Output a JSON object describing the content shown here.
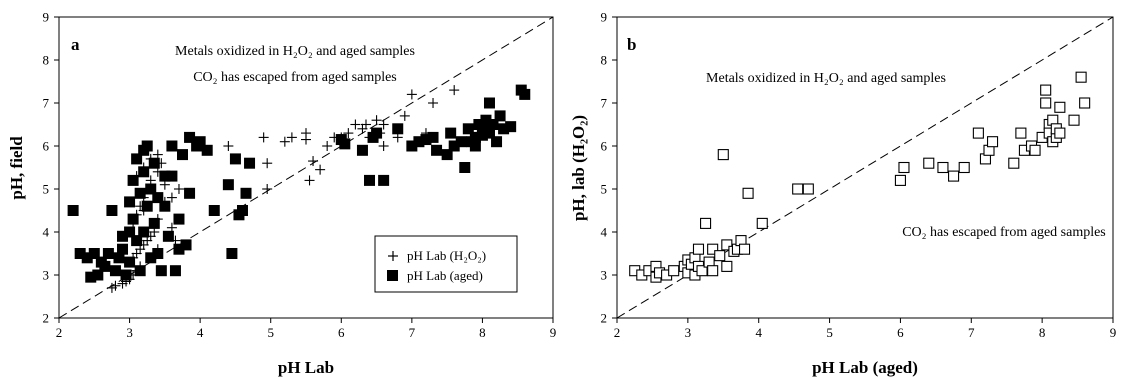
{
  "chart_data": [
    {
      "panel": "a",
      "type": "scatter",
      "xlabel": "pH Lab",
      "ylabel": "pH, field",
      "xlim": [
        2,
        9
      ],
      "ylim": [
        2,
        9
      ],
      "xticks": [
        "2",
        "3",
        "4",
        "5",
        "6",
        "7",
        "8",
        "9"
      ],
      "yticks": [
        "2",
        "3",
        "4",
        "5",
        "6",
        "7",
        "8",
        "9"
      ],
      "grid": false,
      "legend_position": "bottom-right",
      "reference_line": {
        "style": "dashed",
        "x": [
          2,
          9
        ],
        "y": [
          2,
          9
        ]
      },
      "annotations": [
        {
          "text": "Metals oxidized in H₂O₂ and aged samples",
          "x": 5.45,
          "y": 8.45
        },
        {
          "text": "CO₂ has escaped from aged samples",
          "x": 5.45,
          "y": 7.65
        }
      ],
      "series": [
        {
          "name": "pH Lab (H₂O₂)",
          "marker": "plus",
          "points": [
            [
              2.75,
              2.7
            ],
            [
              2.8,
              2.75
            ],
            [
              2.9,
              2.8
            ],
            [
              3.0,
              2.9
            ],
            [
              3.05,
              3.0
            ],
            [
              3.1,
              3.1
            ],
            [
              3.15,
              3.2
            ],
            [
              2.95,
              2.85
            ],
            [
              3.0,
              3.3
            ],
            [
              3.05,
              3.4
            ],
            [
              3.1,
              3.5
            ],
            [
              3.15,
              3.6
            ],
            [
              3.2,
              3.7
            ],
            [
              3.25,
              3.8
            ],
            [
              3.3,
              3.9
            ],
            [
              3.35,
              4.0
            ],
            [
              3.05,
              4.2
            ],
            [
              3.1,
              4.4
            ],
            [
              3.15,
              4.6
            ],
            [
              3.2,
              4.8
            ],
            [
              3.25,
              5.0
            ],
            [
              3.3,
              5.2
            ],
            [
              3.4,
              5.4
            ],
            [
              3.45,
              5.6
            ],
            [
              3.1,
              5.3
            ],
            [
              3.2,
              5.5
            ],
            [
              3.3,
              5.7
            ],
            [
              3.4,
              5.8
            ],
            [
              3.5,
              5.1
            ],
            [
              3.6,
              4.8
            ],
            [
              3.7,
              5.0
            ],
            [
              3.2,
              4.5
            ],
            [
              3.4,
              4.3
            ],
            [
              3.5,
              4.7
            ],
            [
              3.3,
              3.4
            ],
            [
              3.4,
              3.6
            ],
            [
              3.6,
              4.1
            ],
            [
              3.65,
              3.8
            ],
            [
              4.4,
              6.0
            ],
            [
              4.9,
              6.2
            ],
            [
              4.95,
              5.6
            ],
            [
              4.95,
              5.0
            ],
            [
              5.2,
              6.1
            ],
            [
              5.3,
              6.2
            ],
            [
              5.5,
              6.3
            ],
            [
              5.5,
              6.15
            ],
            [
              5.55,
              5.2
            ],
            [
              5.6,
              5.65
            ],
            [
              5.7,
              5.45
            ],
            [
              5.8,
              6.0
            ],
            [
              5.9,
              6.2
            ],
            [
              6.0,
              6.2
            ],
            [
              6.0,
              6.1
            ],
            [
              6.1,
              6.3
            ],
            [
              6.2,
              6.5
            ],
            [
              6.3,
              6.4
            ],
            [
              6.35,
              6.5
            ],
            [
              6.4,
              6.2
            ],
            [
              6.5,
              6.6
            ],
            [
              6.55,
              6.3
            ],
            [
              6.6,
              6.5
            ],
            [
              6.6,
              6.0
            ],
            [
              6.8,
              6.2
            ],
            [
              6.9,
              6.7
            ],
            [
              7.0,
              7.2
            ],
            [
              7.2,
              6.3
            ],
            [
              7.3,
              7.0
            ],
            [
              7.6,
              7.3
            ]
          ]
        },
        {
          "name": "pH Lab (aged)",
          "marker": "filled-square",
          "points": [
            [
              2.2,
              4.5
            ],
            [
              2.3,
              3.5
            ],
            [
              2.4,
              3.4
            ],
            [
              2.45,
              2.95
            ],
            [
              2.5,
              3.5
            ],
            [
              2.55,
              3.0
            ],
            [
              2.6,
              3.3
            ],
            [
              2.65,
              3.2
            ],
            [
              2.7,
              3.5
            ],
            [
              2.75,
              4.5
            ],
            [
              2.8,
              3.1
            ],
            [
              2.85,
              3.4
            ],
            [
              2.9,
              3.9
            ],
            [
              2.95,
              3.0
            ],
            [
              2.9,
              3.6
            ],
            [
              3.0,
              4.7
            ],
            [
              3.0,
              3.3
            ],
            [
              3.0,
              4.0
            ],
            [
              3.05,
              4.3
            ],
            [
              3.05,
              5.2
            ],
            [
              3.1,
              3.8
            ],
            [
              3.1,
              5.7
            ],
            [
              3.15,
              4.9
            ],
            [
              3.15,
              3.1
            ],
            [
              3.2,
              4.0
            ],
            [
              3.2,
              5.4
            ],
            [
              3.2,
              5.9
            ],
            [
              3.25,
              4.6
            ],
            [
              3.25,
              6.0
            ],
            [
              3.3,
              3.4
            ],
            [
              3.3,
              5.0
            ],
            [
              3.35,
              4.2
            ],
            [
              3.35,
              5.6
            ],
            [
              3.4,
              3.5
            ],
            [
              3.4,
              4.8
            ],
            [
              3.45,
              3.1
            ],
            [
              3.5,
              4.6
            ],
            [
              3.5,
              5.3
            ],
            [
              3.55,
              3.9
            ],
            [
              3.6,
              6.0
            ],
            [
              3.6,
              5.3
            ],
            [
              3.65,
              3.1
            ],
            [
              3.7,
              4.3
            ],
            [
              3.7,
              3.6
            ],
            [
              3.75,
              5.8
            ],
            [
              3.8,
              3.7
            ],
            [
              3.85,
              6.2
            ],
            [
              3.85,
              4.9
            ],
            [
              3.95,
              6.0
            ],
            [
              4.1,
              5.9
            ],
            [
              4.0,
              6.1
            ],
            [
              4.2,
              4.5
            ],
            [
              4.4,
              5.1
            ],
            [
              4.45,
              3.5
            ],
            [
              4.5,
              5.7
            ],
            [
              4.55,
              4.4
            ],
            [
              4.6,
              4.5
            ],
            [
              4.65,
              4.9
            ],
            [
              4.7,
              5.6
            ],
            [
              6.0,
              6.15
            ],
            [
              6.05,
              6.05
            ],
            [
              6.3,
              5.9
            ],
            [
              6.4,
              5.2
            ],
            [
              6.45,
              6.2
            ],
            [
              6.5,
              6.3
            ],
            [
              6.6,
              5.2
            ],
            [
              6.8,
              6.4
            ],
            [
              7.0,
              6.0
            ],
            [
              7.1,
              6.1
            ],
            [
              7.2,
              6.15
            ],
            [
              7.3,
              6.2
            ],
            [
              7.35,
              5.9
            ],
            [
              7.5,
              5.8
            ],
            [
              7.55,
              6.3
            ],
            [
              7.6,
              6.0
            ],
            [
              7.7,
              6.1
            ],
            [
              7.75,
              5.5
            ],
            [
              7.8,
              6.4
            ],
            [
              7.85,
              6.1
            ],
            [
              7.9,
              6.0
            ],
            [
              7.9,
              6.2
            ],
            [
              7.95,
              6.5
            ],
            [
              8.0,
              6.25
            ],
            [
              8.0,
              6.4
            ],
            [
              8.05,
              6.6
            ],
            [
              8.1,
              7.0
            ],
            [
              8.1,
              6.3
            ],
            [
              8.15,
              6.5
            ],
            [
              8.2,
              6.1
            ],
            [
              8.25,
              6.7
            ],
            [
              8.3,
              6.4
            ],
            [
              8.4,
              6.45
            ],
            [
              8.55,
              7.3
            ],
            [
              8.6,
              7.2
            ]
          ]
        }
      ]
    },
    {
      "panel": "b",
      "type": "scatter",
      "xlabel": "pH Lab (aged)",
      "ylabel": "pH, lab (H₂O₂)",
      "xlim": [
        2,
        9
      ],
      "ylim": [
        2,
        9
      ],
      "xticks": [
        "2",
        "3",
        "4",
        "5",
        "6",
        "7",
        "8",
        "9"
      ],
      "yticks": [
        "2",
        "3",
        "4",
        "5",
        "6",
        "7",
        "8",
        "9"
      ],
      "grid": false,
      "reference_line": {
        "style": "dashed",
        "x": [
          2,
          9
        ],
        "y": [
          2,
          9
        ]
      },
      "annotations": [
        {
          "text": "Metals oxidized in H₂O₂ and aged samples",
          "x": 4.95,
          "y": 7.55
        },
        {
          "text": "CO₂ has escaped from aged samples",
          "x": 7.45,
          "y": 3.8
        }
      ],
      "series": [
        {
          "marker": "open-square",
          "points": [
            [
              2.25,
              3.1
            ],
            [
              2.35,
              3.0
            ],
            [
              2.45,
              3.1
            ],
            [
              2.55,
              3.2
            ],
            [
              2.55,
              2.95
            ],
            [
              2.6,
              3.05
            ],
            [
              2.7,
              3.0
            ],
            [
              2.8,
              3.1
            ],
            [
              2.95,
              3.2
            ],
            [
              3.0,
              3.35
            ],
            [
              3.0,
              3.05
            ],
            [
              3.05,
              3.25
            ],
            [
              3.1,
              3.4
            ],
            [
              3.1,
              3.0
            ],
            [
              3.15,
              3.6
            ],
            [
              3.15,
              3.2
            ],
            [
              3.2,
              3.1
            ],
            [
              3.25,
              4.2
            ],
            [
              3.3,
              3.3
            ],
            [
              3.35,
              3.6
            ],
            [
              3.35,
              3.1
            ],
            [
              3.45,
              3.45
            ],
            [
              3.5,
              5.8
            ],
            [
              3.55,
              3.2
            ],
            [
              3.55,
              3.7
            ],
            [
              3.65,
              3.55
            ],
            [
              3.7,
              3.6
            ],
            [
              3.75,
              3.8
            ],
            [
              3.8,
              3.6
            ],
            [
              3.85,
              4.9
            ],
            [
              4.05,
              4.2
            ],
            [
              4.55,
              5.0
            ],
            [
              4.7,
              5.0
            ],
            [
              6.0,
              5.2
            ],
            [
              6.05,
              5.5
            ],
            [
              6.4,
              5.6
            ],
            [
              6.6,
              5.5
            ],
            [
              6.75,
              5.3
            ],
            [
              6.9,
              5.5
            ],
            [
              7.1,
              6.3
            ],
            [
              7.2,
              5.7
            ],
            [
              7.25,
              5.9
            ],
            [
              7.3,
              6.1
            ],
            [
              7.6,
              5.6
            ],
            [
              7.7,
              6.3
            ],
            [
              7.75,
              5.9
            ],
            [
              7.85,
              6.0
            ],
            [
              7.9,
              5.9
            ],
            [
              8.0,
              6.2
            ],
            [
              8.05,
              7.0
            ],
            [
              8.05,
              7.3
            ],
            [
              8.1,
              6.5
            ],
            [
              8.1,
              6.3
            ],
            [
              8.15,
              6.6
            ],
            [
              8.15,
              6.1
            ],
            [
              8.2,
              6.2
            ],
            [
              8.2,
              6.4
            ],
            [
              8.25,
              6.3
            ],
            [
              8.25,
              6.9
            ],
            [
              8.45,
              6.6
            ],
            [
              8.55,
              7.6
            ],
            [
              8.6,
              7.0
            ]
          ]
        }
      ]
    }
  ]
}
